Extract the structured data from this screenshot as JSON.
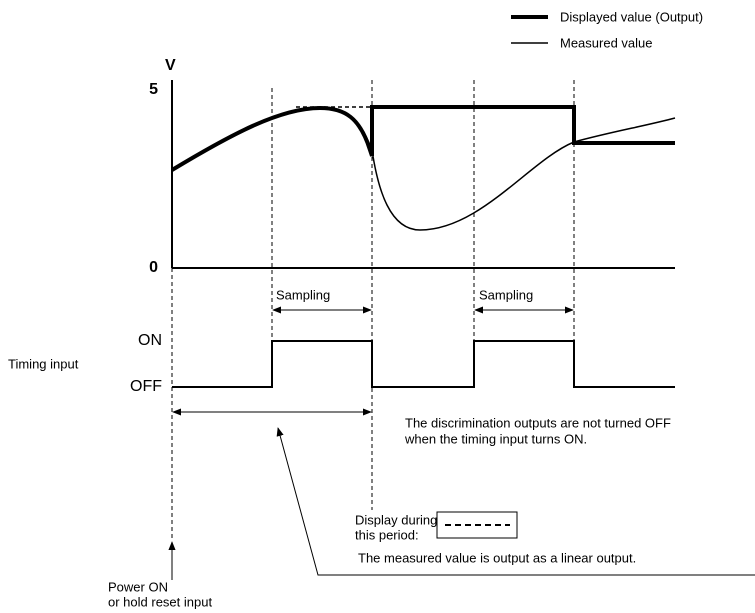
{
  "legend": {
    "items": [
      "Displayed value (Output)",
      "Measured value"
    ]
  },
  "axis": {
    "unit": "V",
    "top": "5",
    "bottom": "0"
  },
  "sampling": [
    "Sampling",
    "Sampling"
  ],
  "timing": {
    "label": "Timing input",
    "on": "ON",
    "off": "OFF"
  },
  "note": [
    "The discrimination outputs are not turned OFF",
    "when the timing input turns ON."
  ],
  "display_period": [
    "Display during",
    "this period:"
  ],
  "linear_note": "The measured value is output as a linear output.",
  "power": [
    "Power ON",
    "or hold reset input"
  ]
}
